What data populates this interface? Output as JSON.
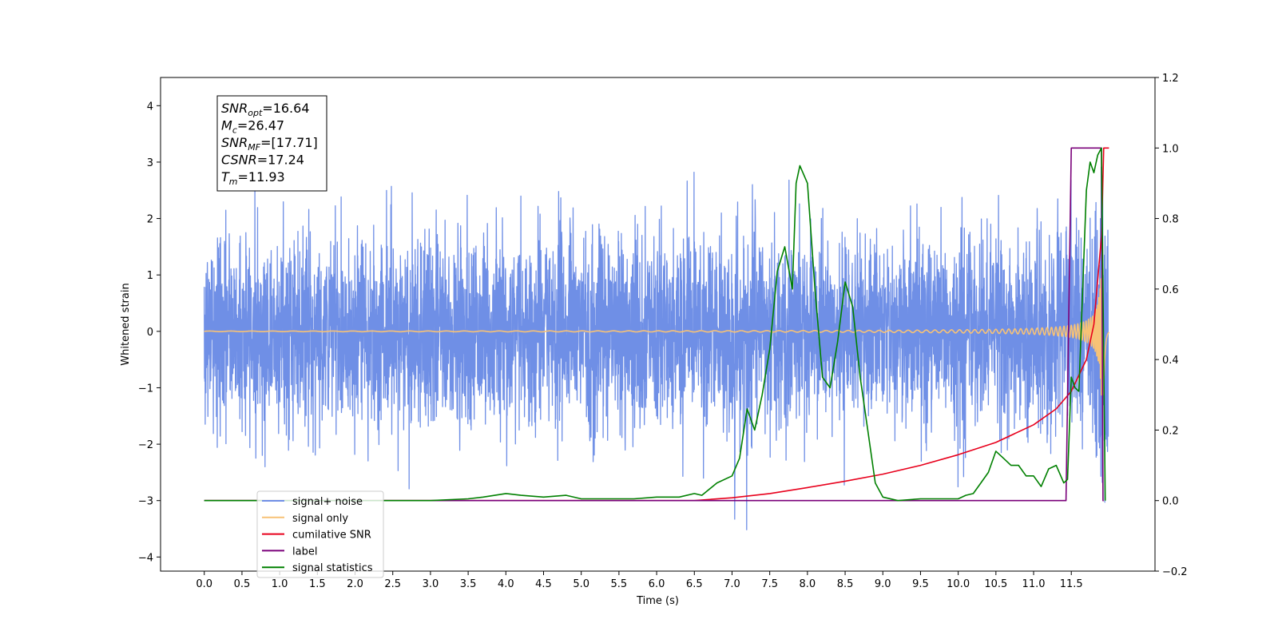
{
  "chart_data": {
    "type": "line",
    "xlabel": "Time (s)",
    "ylabel": "Whitened strain",
    "xlim": [
      -0.58,
      12.61
    ],
    "ylim": [
      -4.25,
      4.5
    ],
    "y2lim": [
      -0.2,
      1.2
    ],
    "xticks": [
      "0.0",
      "0.5",
      "1.0",
      "1.5",
      "2.0",
      "2.5",
      "3.0",
      "3.5",
      "4.0",
      "4.5",
      "5.0",
      "5.5",
      "6.0",
      "6.5",
      "7.0",
      "7.5",
      "8.0",
      "8.5",
      "9.0",
      "9.5",
      "10.0",
      "10.5",
      "11.0",
      "11.5"
    ],
    "yticks_left": [
      "−4",
      "−3",
      "−2",
      "−1",
      "0",
      "1",
      "2",
      "3",
      "4"
    ],
    "yticks_right": [
      "−0.2",
      "0.0",
      "0.2",
      "0.4",
      "0.6",
      "0.8",
      "1.0",
      "1.2"
    ],
    "grid": false,
    "legend_position": "lower-left",
    "annotation": {
      "lines": [
        {
          "base": "SNR",
          "sub": "opt",
          "rest": "=16.64"
        },
        {
          "base": "M",
          "sub": "c",
          "rest": "=26.47"
        },
        {
          "base": "SNR",
          "sub": "MF",
          "rest": "=[17.71]"
        },
        {
          "base": "CSNR",
          "sub": "",
          "rest": "=17.24"
        },
        {
          "base": "T",
          "sub": "m",
          "rest": "=11.93"
        }
      ]
    },
    "series": [
      {
        "name": "signal+ noise",
        "color": "#6f8fe6",
        "axis": "left",
        "kind": "noise",
        "x_range": [
          0.0,
          11.99
        ],
        "sigma": 0.85
      },
      {
        "name": "signal only",
        "color": "#f7c276",
        "axis": "left",
        "kind": "chirp",
        "x_range": [
          0.0,
          12.0
        ],
        "merger_time": 11.93
      },
      {
        "name": "cumilative SNR",
        "color": "#e8001c",
        "axis": "right",
        "x": [
          0.0,
          6.5,
          7.0,
          7.5,
          8.0,
          8.5,
          9.0,
          9.5,
          10.0,
          10.5,
          11.0,
          11.3,
          11.5,
          11.7,
          11.8,
          11.9,
          11.93,
          12.0
        ],
        "y": [
          0.0,
          0.0,
          0.008,
          0.02,
          0.037,
          0.055,
          0.075,
          0.1,
          0.13,
          0.165,
          0.215,
          0.26,
          0.31,
          0.4,
          0.5,
          0.75,
          1.0,
          1.0
        ]
      },
      {
        "name": "label",
        "color": "#7a007a",
        "axis": "right",
        "x": [
          0.0,
          11.43,
          11.5,
          11.9,
          11.92,
          11.93
        ],
        "y": [
          0.0,
          0.0,
          1.0,
          1.0,
          0.0,
          0.0
        ]
      },
      {
        "name": "signal statistics",
        "color": "#008000",
        "axis": "right",
        "x": [
          0.0,
          2.5,
          3.0,
          3.5,
          3.7,
          4.0,
          4.2,
          4.5,
          4.8,
          5.0,
          5.3,
          5.7,
          6.0,
          6.3,
          6.5,
          6.6,
          6.8,
          7.0,
          7.1,
          7.2,
          7.3,
          7.4,
          7.5,
          7.6,
          7.7,
          7.8,
          7.85,
          7.9,
          8.0,
          8.1,
          8.2,
          8.3,
          8.4,
          8.5,
          8.6,
          8.7,
          8.8,
          8.9,
          9.0,
          9.2,
          9.5,
          9.8,
          10.0,
          10.1,
          10.2,
          10.3,
          10.4,
          10.5,
          10.6,
          10.7,
          10.8,
          10.9,
          11.0,
          11.1,
          11.2,
          11.3,
          11.4,
          11.45,
          11.5,
          11.55,
          11.6,
          11.7,
          11.75,
          11.8,
          11.85,
          11.9,
          11.95
        ],
        "y": [
          0.0,
          0.0,
          0.0,
          0.005,
          0.01,
          0.02,
          0.015,
          0.01,
          0.015,
          0.005,
          0.005,
          0.005,
          0.01,
          0.01,
          0.02,
          0.015,
          0.05,
          0.07,
          0.12,
          0.26,
          0.2,
          0.3,
          0.43,
          0.65,
          0.72,
          0.6,
          0.9,
          0.95,
          0.9,
          0.6,
          0.35,
          0.32,
          0.45,
          0.62,
          0.55,
          0.35,
          0.2,
          0.05,
          0.01,
          0.0,
          0.005,
          0.005,
          0.005,
          0.015,
          0.02,
          0.05,
          0.08,
          0.14,
          0.12,
          0.1,
          0.1,
          0.07,
          0.07,
          0.04,
          0.09,
          0.1,
          0.05,
          0.06,
          0.35,
          0.32,
          0.31,
          0.88,
          0.96,
          0.93,
          0.98,
          1.0,
          0.0
        ]
      }
    ]
  }
}
